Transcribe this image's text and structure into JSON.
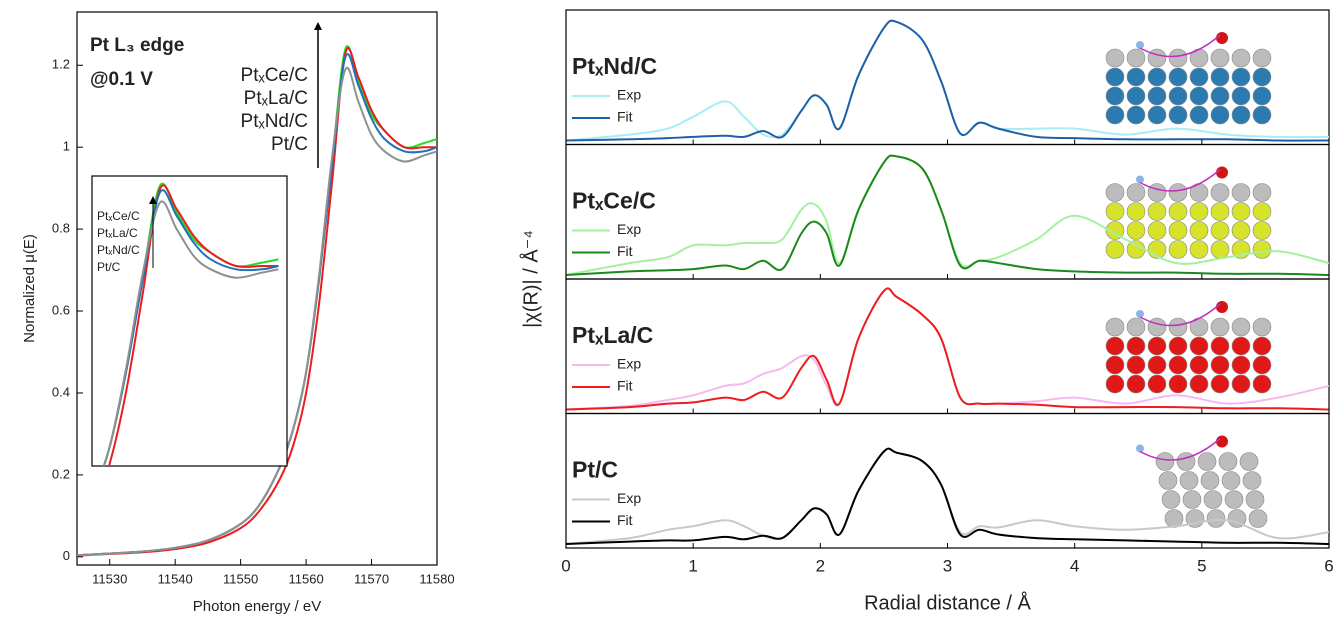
{
  "chart_data": [
    {
      "type": "line",
      "x_label": "Photon energy / eV",
      "y_label": "Normalized μ(E)",
      "annotations": [
        "Pt L₃ edge",
        "@0.1 V"
      ],
      "xlim": [
        11525,
        11580
      ],
      "ylim": [
        -0.02,
        1.33
      ],
      "xticks": [
        11530,
        11540,
        11550,
        11560,
        11570,
        11580
      ],
      "yticks": [
        0,
        0.2,
        0.4,
        0.6,
        0.8,
        1,
        1.2
      ],
      "x": [
        11525,
        11530,
        11535,
        11540,
        11545,
        11550,
        11553,
        11556,
        11558,
        11560,
        11562,
        11564,
        11566,
        11568,
        11570,
        11572,
        11575,
        11578,
        11580
      ],
      "series": [
        {
          "name": "PtₓCe/C",
          "color": "#22dd22",
          "values": [
            0.004,
            0.008,
            0.013,
            0.022,
            0.04,
            0.08,
            0.13,
            0.22,
            0.31,
            0.45,
            0.68,
            0.97,
            1.24,
            1.16,
            1.08,
            1.04,
            1.0,
            1.01,
            1.02
          ]
        },
        {
          "name": "PtₓLa/C",
          "color": "#ee1c1c",
          "values": [
            0.003,
            0.007,
            0.011,
            0.019,
            0.035,
            0.07,
            0.115,
            0.19,
            0.27,
            0.4,
            0.62,
            0.92,
            1.23,
            1.17,
            1.09,
            1.04,
            1.0,
            1.0,
            1.0
          ]
        },
        {
          "name": "PtₓNd/C",
          "color": "#1f70b8",
          "values": [
            0.004,
            0.008,
            0.013,
            0.022,
            0.04,
            0.08,
            0.13,
            0.22,
            0.31,
            0.45,
            0.68,
            0.96,
            1.22,
            1.15,
            1.07,
            1.02,
            0.99,
            0.99,
            1.0
          ]
        },
        {
          "name": "Pt/C",
          "color": "#909090",
          "values": [
            0.004,
            0.008,
            0.013,
            0.022,
            0.04,
            0.08,
            0.13,
            0.22,
            0.31,
            0.45,
            0.69,
            0.98,
            1.19,
            1.11,
            1.03,
            0.99,
            0.965,
            0.98,
            0.99
          ]
        }
      ],
      "inset": {
        "xlim": [
          11558,
          11581
        ],
        "ylim": [
          0.4,
          1.27
        ]
      }
    },
    {
      "type": "line_panels",
      "x_label": "Radial distance / Å",
      "y_label": "|χ(R)| / Å⁻⁴",
      "xlim": [
        0,
        6
      ],
      "xticks": [
        0,
        1,
        2,
        3,
        4,
        5,
        6
      ],
      "x": [
        0,
        0.5,
        0.8,
        1.0,
        1.25,
        1.4,
        1.55,
        1.7,
        1.85,
        1.95,
        2.05,
        2.15,
        2.3,
        2.5,
        2.6,
        2.8,
        2.95,
        3.1,
        3.25,
        3.4,
        3.7,
        4.0,
        4.4,
        4.8,
        5.2,
        5.6,
        6.0
      ],
      "panels": [
        {
          "name": "PtₓNd/C",
          "color": "#1f5fa8",
          "ylim": [
            0,
            1.05
          ],
          "series": [
            {
              "name": "Exp",
              "color": "#a8ecf7",
              "values": [
                0,
                0.05,
                0.1,
                0.2,
                0.33,
                0.2,
                0.05,
                0.05,
                0.25,
                0.38,
                0.3,
                0.1,
                0.55,
                0.95,
                1.0,
                0.85,
                0.5,
                0.06,
                0.15,
                0.1,
                0.1,
                0.1,
                0.05,
                0.1,
                0.05,
                0.03,
                0.03
              ]
            },
            {
              "name": "Fit",
              "color": "#1f5fa8",
              "values": [
                0,
                0.01,
                0.02,
                0.03,
                0.04,
                0.03,
                0.08,
                0.03,
                0.25,
                0.38,
                0.3,
                0.1,
                0.55,
                0.95,
                1.0,
                0.85,
                0.5,
                0.06,
                0.15,
                0.1,
                0.03,
                0.02,
                0.01,
                0.01,
                0.01,
                0,
                0
              ]
            }
          ]
        },
        {
          "name": "PtₓCe/C",
          "color": "#1a8a1a",
          "ylim": [
            0,
            1.05
          ],
          "series": [
            {
              "name": "Exp",
              "color": "#a4f0a0",
              "values": [
                0,
                0.1,
                0.15,
                0.25,
                0.25,
                0.27,
                0.27,
                0.3,
                0.55,
                0.6,
                0.45,
                0.1,
                0.55,
                0.95,
                1.0,
                0.9,
                0.55,
                0.1,
                0.12,
                0.15,
                0.3,
                0.5,
                0.3,
                0.1,
                0.15,
                0.2,
                0.1
              ]
            },
            {
              "name": "Fit",
              "color": "#1a8a1a",
              "values": [
                0,
                0.03,
                0.04,
                0.05,
                0.08,
                0.05,
                0.12,
                0.05,
                0.35,
                0.45,
                0.35,
                0.08,
                0.55,
                0.95,
                1.0,
                0.9,
                0.55,
                0.08,
                0.12,
                0.1,
                0.05,
                0.03,
                0.02,
                0.02,
                0.01,
                0.01,
                0
              ]
            }
          ]
        },
        {
          "name": "PtₓLa/C",
          "color": "#ee1c1c",
          "ylim": [
            0,
            1.05
          ],
          "series": [
            {
              "name": "Exp",
              "color": "#f5b8f0",
              "values": [
                0,
                0.03,
                0.08,
                0.12,
                0.2,
                0.22,
                0.3,
                0.35,
                0.45,
                0.42,
                0.2,
                0.05,
                0.6,
                1.0,
                0.95,
                0.8,
                0.6,
                0.1,
                0.05,
                0.05,
                0.07,
                0.1,
                0.05,
                0.12,
                0.05,
                0.1,
                0.2
              ]
            },
            {
              "name": "Fit",
              "color": "#ee1c1c",
              "values": [
                0,
                0.02,
                0.05,
                0.06,
                0.1,
                0.08,
                0.15,
                0.1,
                0.35,
                0.45,
                0.25,
                0.05,
                0.6,
                1.0,
                0.95,
                0.8,
                0.6,
                0.1,
                0.05,
                0.05,
                0.04,
                0.02,
                0.02,
                0.02,
                0.01,
                0.01,
                0
              ]
            }
          ]
        },
        {
          "name": "Pt/C",
          "color": "#555555",
          "ylim": [
            0,
            1.05
          ],
          "series": [
            {
              "name": "Exp",
              "color": "#c8c8c8",
              "values": [
                0,
                0.05,
                0.12,
                0.15,
                0.2,
                0.15,
                0.07,
                0.05,
                0.2,
                0.3,
                0.25,
                0.08,
                0.45,
                0.78,
                0.77,
                0.7,
                0.5,
                0.1,
                0.15,
                0.14,
                0.2,
                0.15,
                0.12,
                0.15,
                0.2,
                0.05,
                0.1
              ]
            },
            {
              "name": "Fit",
              "color": "#000000",
              "values": [
                0,
                0.02,
                0.03,
                0.03,
                0.06,
                0.04,
                0.07,
                0.05,
                0.2,
                0.3,
                0.25,
                0.08,
                0.45,
                0.78,
                0.77,
                0.7,
                0.5,
                0.08,
                0.12,
                0.08,
                0.05,
                0.04,
                0.03,
                0.02,
                0.01,
                0.01,
                0
              ]
            }
          ]
        }
      ]
    }
  ]
}
